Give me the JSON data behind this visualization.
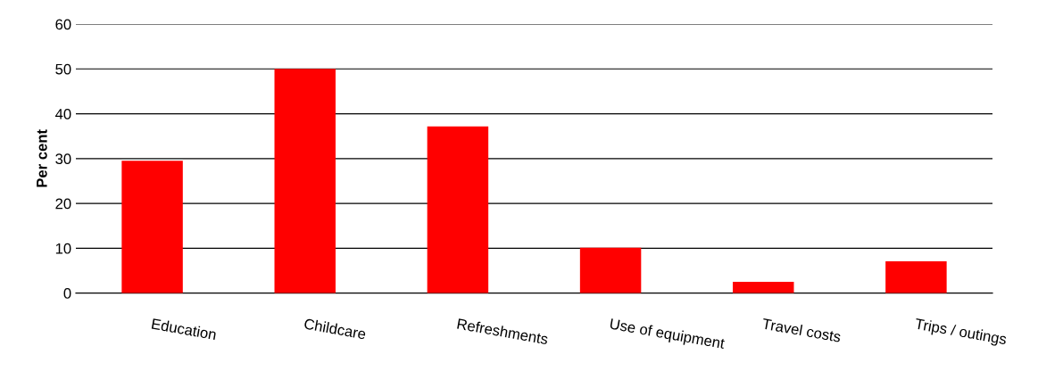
{
  "chart_data": {
    "type": "bar",
    "ylabel": "Per cent",
    "categories": [
      "Education",
      "Childcare",
      "Refreshments",
      "Use of equipment",
      "Travel costs",
      "Trips / outings"
    ],
    "values": [
      29.5,
      50,
      37.2,
      10.1,
      2.5,
      7.1
    ],
    "color": "#ff0000",
    "ylim": [
      0,
      60
    ],
    "yticks": [
      0,
      10,
      20,
      30,
      40,
      50,
      60
    ],
    "grid": "y"
  }
}
